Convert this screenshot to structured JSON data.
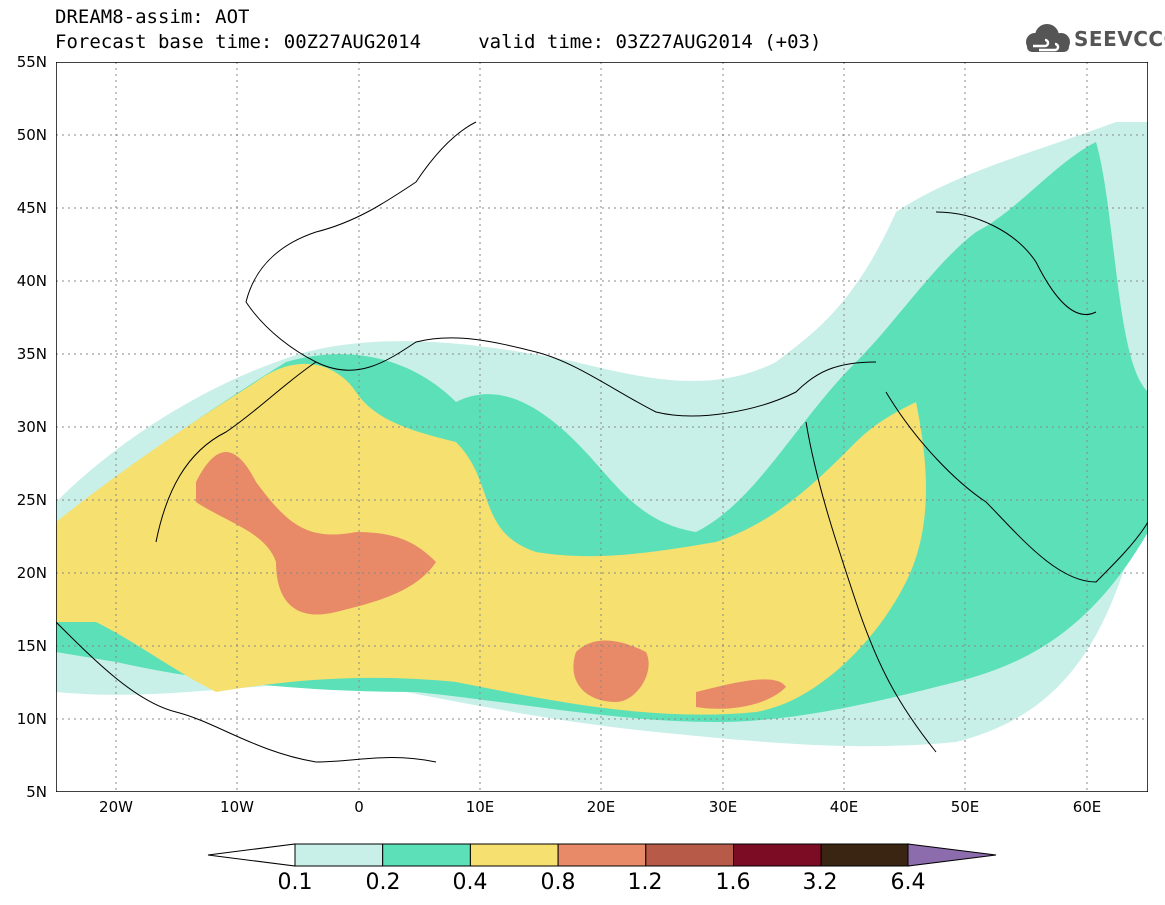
{
  "header": {
    "title_line1": "DREAM8-assim: AOT",
    "title_line2": "Forecast base time: 00Z27AUG2014     valid time: 03Z27AUG2014 (+03)"
  },
  "logo": {
    "text": "SEEVCCC",
    "icon": "cloud-icon",
    "color": "#555555"
  },
  "map": {
    "lat_ticks": [
      "55N",
      "50N",
      "45N",
      "40N",
      "35N",
      "30N",
      "25N",
      "20N",
      "15N",
      "10N",
      "5N"
    ],
    "lon_ticks": [
      "20W",
      "10W",
      "0",
      "10E",
      "20E",
      "30E",
      "40E",
      "50E",
      "60E"
    ],
    "grid": true,
    "extent": {
      "lon_min": -25,
      "lon_max": 65,
      "lat_min": 5,
      "lat_max": 55
    }
  },
  "colorbar": {
    "levels": [
      "0.1",
      "0.2",
      "0.4",
      "0.8",
      "1.2",
      "1.6",
      "3.2",
      "6.4"
    ],
    "colors": [
      "#c8f0e8",
      "#5ce0b8",
      "#f5e070",
      "#e88a68",
      "#b85a48",
      "#7c0c24",
      "#3a2412",
      "#8c6cac"
    ],
    "below_color": "#ffffff",
    "above_color": "#8c6cac"
  }
}
